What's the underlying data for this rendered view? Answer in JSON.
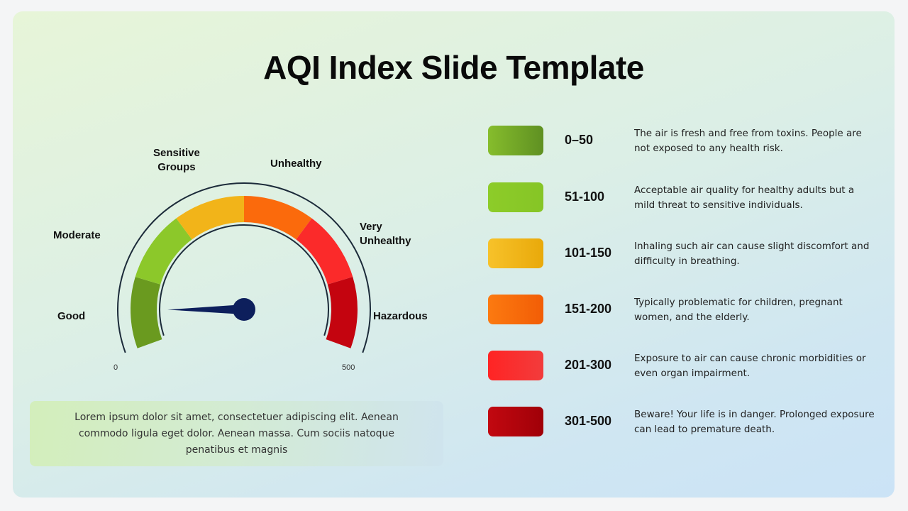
{
  "title": "AQI Index Slide Template",
  "gauge": {
    "min_label": "0",
    "max_label": "500",
    "needle_value": 45,
    "scale_min": 0,
    "scale_max": 500,
    "categories": [
      {
        "key": "good",
        "label_lines": [
          "Good"
        ],
        "color": "#6a9a1f"
      },
      {
        "key": "moderate",
        "label_lines": [
          "Moderate"
        ],
        "color": "#8cc82a"
      },
      {
        "key": "sensitive",
        "label_lines": [
          "Sensitive",
          "Groups"
        ],
        "color": "#f2b419"
      },
      {
        "key": "unhealthy",
        "label_lines": [
          "Unhealthy"
        ],
        "color": "#fb6a0c"
      },
      {
        "key": "very-unhealthy",
        "label_lines": [
          "Very",
          "Unhealthy"
        ],
        "color": "#fb2a2a"
      },
      {
        "key": "hazardous",
        "label_lines": [
          "Hazardous"
        ],
        "color": "#c4040f"
      }
    ]
  },
  "note": "Lorem ipsum dolor sit amet, consectetuer adipiscing elit. Aenean commodo ligula eget dolor. Aenean massa. Cum sociis natoque penatibus et magnis",
  "legend": [
    {
      "range": "0–50",
      "desc": "The air is fresh and free from toxins. People are not exposed to any health risk.",
      "color_from": "#86bd2c",
      "color_to": "#5f9022"
    },
    {
      "range": "51-100",
      "desc": "Acceptable air quality for healthy adults but a mild threat to sensitive individuals.",
      "color_from": "#8dcc29",
      "color_to": "#86c526"
    },
    {
      "range": "101-150",
      "desc": "Inhaling such air can cause slight discomfort and difficulty in breathing.",
      "color_from": "#f7c22a",
      "color_to": "#e9a90a"
    },
    {
      "range": "151-200",
      "desc": "Typically problematic for children, pregnant women, and the elderly.",
      "color_from": "#fc7a10",
      "color_to": "#f25d06"
    },
    {
      "range": "201-300",
      "desc": "Exposure to air can cause chronic morbidities or even organ impairment.",
      "color_from": "#ff2424",
      "color_to": "#f23c3c"
    },
    {
      "range": "301-500",
      "desc": "Beware! Your life is in danger. Prolonged exposure can lead to premature death.",
      "color_from": "#c20810",
      "color_to": "#a00008"
    }
  ]
}
